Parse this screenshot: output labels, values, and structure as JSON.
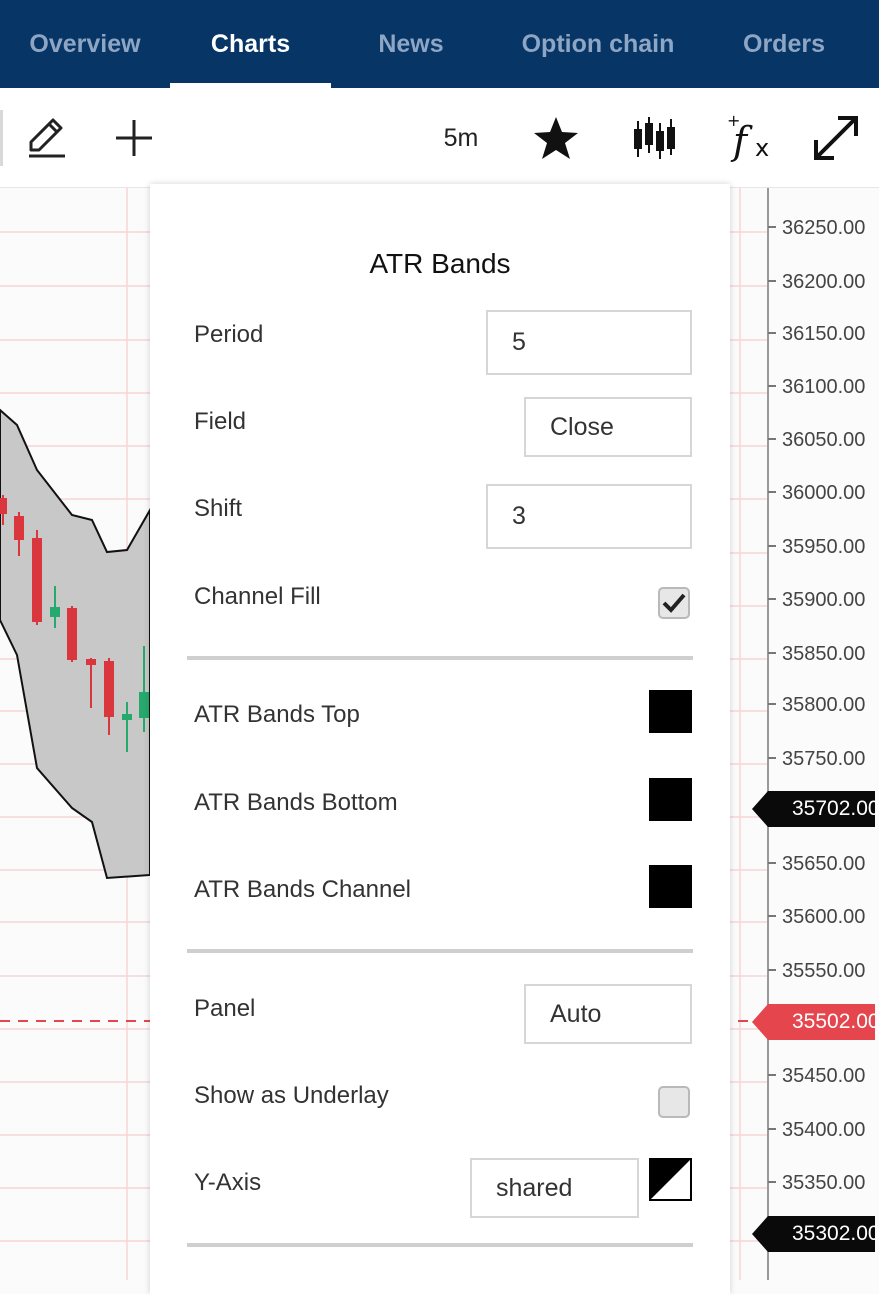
{
  "nav": {
    "tabs": [
      {
        "label": "Overview"
      },
      {
        "label": "Charts"
      },
      {
        "label": "News"
      },
      {
        "label": "Option chain"
      },
      {
        "label": "Orders"
      }
    ],
    "active_tab": "Charts"
  },
  "toolbar": {
    "icons": [
      "pencil-icon",
      "crosshair-icon",
      "star-icon",
      "candlestick-icon",
      "function-icon",
      "expand-icon"
    ],
    "interval": "5m"
  },
  "axis": {
    "ticks": [
      "36250.00",
      "36200.00",
      "36150.00",
      "36100.00",
      "36050.00",
      "36000.00",
      "35950.00",
      "35900.00",
      "35850.00",
      "35800.00",
      "35750.00",
      "35650.00",
      "35600.00",
      "35550.00",
      "35450.00",
      "35400.00",
      "35350.00"
    ],
    "flags": [
      {
        "value": "35702.00",
        "color": "#0a0a0a"
      },
      {
        "value": "35502.00",
        "color": "#e5464e"
      },
      {
        "value": "35302.00",
        "color": "#0a0a0a"
      }
    ]
  },
  "dialog": {
    "title": "ATR Bands",
    "period": {
      "label": "Period",
      "value": "5"
    },
    "field": {
      "label": "Field",
      "value": "Close"
    },
    "shift": {
      "label": "Shift",
      "value": "3"
    },
    "channel_fill": {
      "label": "Channel Fill",
      "checked": true
    },
    "top": {
      "label": "ATR Bands Top",
      "color": "#000000"
    },
    "bottom": {
      "label": "ATR Bands Bottom",
      "color": "#000000"
    },
    "channel": {
      "label": "ATR Bands Channel",
      "color": "#000000"
    },
    "panel": {
      "label": "Panel",
      "value": "Auto"
    },
    "underlay": {
      "label": "Show as Underlay",
      "checked": false
    },
    "yaxis": {
      "label": "Y-Axis",
      "value": "shared"
    }
  },
  "colors": {
    "nav_bg": "#063566",
    "up_candle": "#26a96c",
    "down_candle": "#d9363e"
  }
}
